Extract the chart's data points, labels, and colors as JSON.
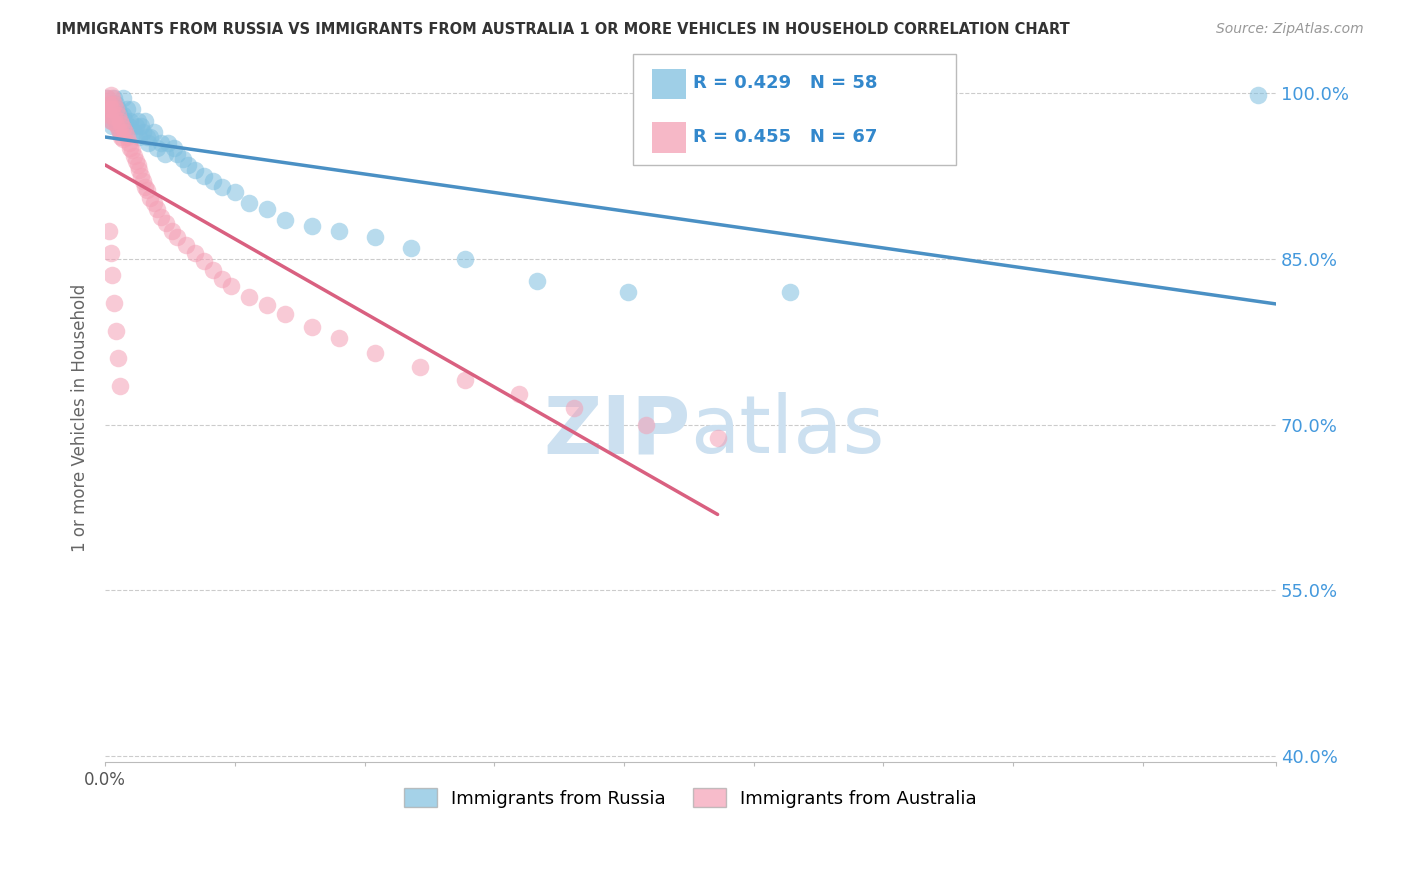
{
  "title": "IMMIGRANTS FROM RUSSIA VS IMMIGRANTS FROM AUSTRALIA 1 OR MORE VEHICLES IN HOUSEHOLD CORRELATION CHART",
  "source": "Source: ZipAtlas.com",
  "ylabel": "1 or more Vehicles in Household",
  "legend_russia": "Immigrants from Russia",
  "legend_australia": "Immigrants from Australia",
  "R_russia": 0.429,
  "N_russia": 58,
  "R_australia": 0.455,
  "N_australia": 67,
  "color_russia": "#7fbfdf",
  "color_australia": "#f4a0b5",
  "trendline_russia": "#4a90c4",
  "trendline_australia": "#d96080",
  "xmin": 0.0,
  "xmax": 0.065,
  "ymin": 0.395,
  "ymax": 1.018,
  "y_ticks": [
    0.4,
    0.55,
    0.7,
    0.85,
    1.0
  ],
  "y_tick_labels": [
    "",
    "",
    "",
    "",
    ""
  ],
  "y_right_labels": [
    "40.0%",
    "55.0%",
    "70.0%",
    "85.0%",
    "100.0%"
  ],
  "x_tick_pos": [
    0.0,
    0.0072,
    0.0144,
    0.0216,
    0.0288,
    0.036,
    0.0432,
    0.0504,
    0.0576,
    0.065
  ],
  "watermark_text": "ZIPatlas",
  "watermark_color": "#cce0f0",
  "russia_x": [
    0.0001,
    0.0002,
    0.0003,
    0.0003,
    0.0004,
    0.0004,
    0.0005,
    0.0005,
    0.0006,
    0.0006,
    0.0007,
    0.0007,
    0.0008,
    0.0008,
    0.0009,
    0.001,
    0.001,
    0.0011,
    0.0012,
    0.0013,
    0.0014,
    0.0015,
    0.0016,
    0.0017,
    0.0018,
    0.0019,
    0.002,
    0.0021,
    0.0022,
    0.0023,
    0.0024,
    0.0025,
    0.0027,
    0.0029,
    0.0031,
    0.0033,
    0.0035,
    0.0038,
    0.004,
    0.0043,
    0.0046,
    0.005,
    0.0055,
    0.006,
    0.0065,
    0.0072,
    0.008,
    0.009,
    0.01,
    0.0115,
    0.013,
    0.015,
    0.017,
    0.02,
    0.024,
    0.029,
    0.038,
    0.064
  ],
  "russia_y": [
    0.995,
    0.985,
    0.99,
    0.98,
    0.975,
    0.97,
    0.995,
    0.98,
    0.99,
    0.975,
    0.985,
    0.97,
    0.98,
    0.965,
    0.975,
    0.995,
    0.98,
    0.975,
    0.985,
    0.97,
    0.975,
    0.985,
    0.965,
    0.97,
    0.975,
    0.96,
    0.97,
    0.965,
    0.975,
    0.96,
    0.955,
    0.96,
    0.965,
    0.95,
    0.955,
    0.945,
    0.955,
    0.95,
    0.945,
    0.94,
    0.935,
    0.93,
    0.925,
    0.92,
    0.915,
    0.91,
    0.9,
    0.895,
    0.885,
    0.88,
    0.875,
    0.87,
    0.86,
    0.85,
    0.83,
    0.82,
    0.82,
    0.998
  ],
  "australia_x": [
    0.0001,
    0.0001,
    0.0002,
    0.0002,
    0.0003,
    0.0003,
    0.0003,
    0.0004,
    0.0004,
    0.0004,
    0.0005,
    0.0005,
    0.0006,
    0.0006,
    0.0007,
    0.0007,
    0.0008,
    0.0008,
    0.0009,
    0.0009,
    0.001,
    0.001,
    0.0011,
    0.0012,
    0.0013,
    0.0014,
    0.0015,
    0.0016,
    0.0017,
    0.0018,
    0.0019,
    0.002,
    0.0021,
    0.0022,
    0.0023,
    0.0025,
    0.0027,
    0.0029,
    0.0031,
    0.0034,
    0.0037,
    0.004,
    0.0045,
    0.005,
    0.0055,
    0.006,
    0.0065,
    0.007,
    0.008,
    0.009,
    0.01,
    0.0115,
    0.013,
    0.015,
    0.0175,
    0.02,
    0.023,
    0.026,
    0.03,
    0.034,
    0.0002,
    0.0003,
    0.0004,
    0.0005,
    0.0006,
    0.0007,
    0.0008
  ],
  "australia_y": [
    0.995,
    0.985,
    0.99,
    0.98,
    0.998,
    0.985,
    0.975,
    0.995,
    0.985,
    0.975,
    0.99,
    0.978,
    0.985,
    0.972,
    0.98,
    0.968,
    0.975,
    0.965,
    0.972,
    0.96,
    0.968,
    0.958,
    0.965,
    0.96,
    0.955,
    0.95,
    0.948,
    0.943,
    0.938,
    0.935,
    0.93,
    0.925,
    0.92,
    0.915,
    0.912,
    0.905,
    0.9,
    0.895,
    0.888,
    0.882,
    0.875,
    0.87,
    0.862,
    0.855,
    0.848,
    0.84,
    0.832,
    0.825,
    0.815,
    0.808,
    0.8,
    0.788,
    0.778,
    0.765,
    0.752,
    0.74,
    0.728,
    0.715,
    0.7,
    0.688,
    0.875,
    0.855,
    0.835,
    0.81,
    0.785,
    0.76,
    0.735
  ]
}
